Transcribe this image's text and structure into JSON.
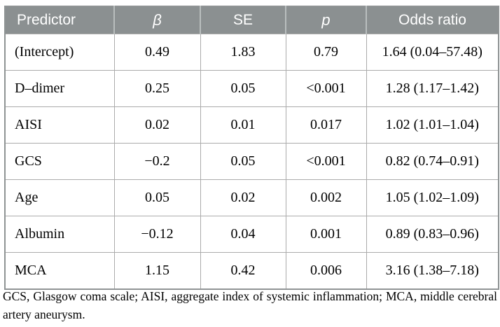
{
  "colors": {
    "header_bg": "#8b9091",
    "header_text": "#ffffff",
    "header_divider": "#b9bebe",
    "grid_line": "#ababab",
    "outer_border": "#8f9394",
    "body_text": "#000000",
    "page_bg": "#ffffff"
  },
  "table": {
    "headers": {
      "predictor": "Predictor",
      "beta": "β",
      "se": "SE",
      "p": "p",
      "odds_ratio": "Odds ratio"
    },
    "rows": [
      {
        "predictor": "(Intercept)",
        "beta": "0.49",
        "se": "1.83",
        "p": "0.79",
        "odds_ratio": "1.64 (0.04–57.48)"
      },
      {
        "predictor": "D–dimer",
        "beta": "0.25",
        "se": "0.05",
        "p": "<0.001",
        "odds_ratio": "1.28 (1.17–1.42)"
      },
      {
        "predictor": "AISI",
        "beta": "0.02",
        "se": "0.01",
        "p": "0.017",
        "odds_ratio": "1.02 (1.01–1.04)"
      },
      {
        "predictor": "GCS",
        "beta": "−0.2",
        "se": "0.05",
        "p": "<0.001",
        "odds_ratio": "0.82 (0.74–0.91)"
      },
      {
        "predictor": "Age",
        "beta": "0.05",
        "se": "0.02",
        "p": "0.002",
        "odds_ratio": "1.05 (1.02–1.09)"
      },
      {
        "predictor": "Albumin",
        "beta": "−0.12",
        "se": "0.04",
        "p": "0.001",
        "odds_ratio": "0.89 (0.83–0.96)"
      },
      {
        "predictor": "MCA",
        "beta": "1.15",
        "se": "0.42",
        "p": "0.006",
        "odds_ratio": "3.16 (1.38–7.18)"
      }
    ]
  },
  "footnote": "GCS, Glasgow coma scale; AISI, aggregate index of systemic inflammation; MCA, middle cerebral artery aneurysm."
}
